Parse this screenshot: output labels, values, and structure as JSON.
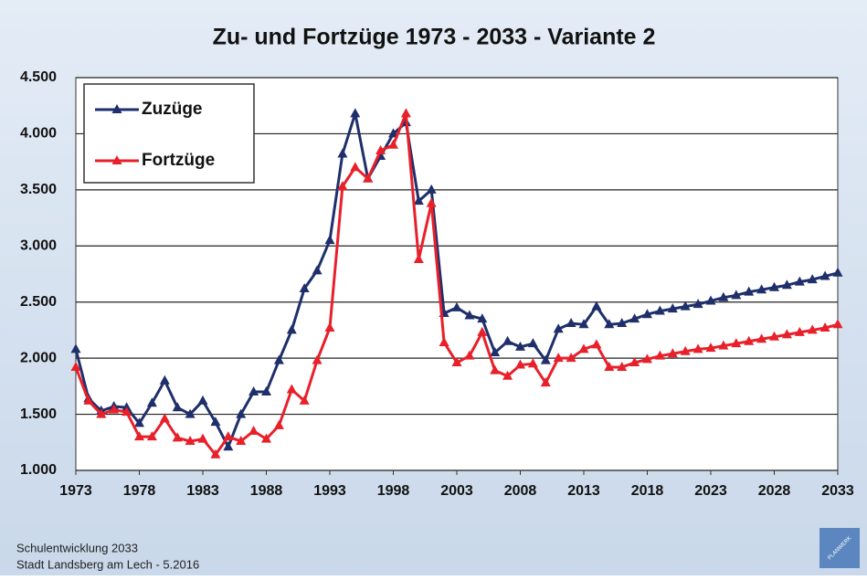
{
  "chart_data": {
    "type": "line",
    "title": "Zu- und Fortzüge 1973 - 2033 - Variante 2",
    "x": [
      1973,
      1974,
      1975,
      1976,
      1977,
      1978,
      1979,
      1980,
      1981,
      1982,
      1983,
      1984,
      1985,
      1986,
      1987,
      1988,
      1989,
      1990,
      1991,
      1992,
      1993,
      1994,
      1995,
      1996,
      1997,
      1998,
      1999,
      2000,
      2001,
      2002,
      2003,
      2004,
      2005,
      2006,
      2007,
      2008,
      2009,
      2010,
      2011,
      2012,
      2013,
      2014,
      2015,
      2016,
      2017,
      2018,
      2019,
      2020,
      2021,
      2022,
      2023,
      2024,
      2025,
      2026,
      2027,
      2028,
      2029,
      2030,
      2031,
      2032,
      2033
    ],
    "series": [
      {
        "name": "Zuzüge",
        "color": "#1f2f6b",
        "values": [
          2080,
          1640,
          1530,
          1570,
          1560,
          1420,
          1600,
          1800,
          1560,
          1500,
          1620,
          1430,
          1210,
          1500,
          1700,
          1700,
          1980,
          2250,
          2620,
          2780,
          3050,
          3820,
          4180,
          3600,
          3800,
          4000,
          4100,
          3400,
          3500,
          2400,
          2450,
          2380,
          2350,
          2050,
          2150,
          2100,
          2130,
          1980,
          2260,
          2310,
          2300,
          2460,
          2300,
          2310,
          2350,
          2390,
          2420,
          2440,
          2460,
          2480,
          2510,
          2540,
          2560,
          2590,
          2610,
          2630,
          2650,
          2680,
          2700,
          2730,
          2760
        ]
      },
      {
        "name": "Fortzüge",
        "color": "#e8202a",
        "values": [
          1920,
          1620,
          1500,
          1540,
          1520,
          1300,
          1300,
          1460,
          1290,
          1260,
          1280,
          1140,
          1300,
          1260,
          1350,
          1280,
          1400,
          1720,
          1620,
          1980,
          2270,
          3530,
          3700,
          3600,
          3850,
          3900,
          4180,
          2880,
          3380,
          2140,
          1960,
          2020,
          2230,
          1890,
          1840,
          1940,
          1950,
          1780,
          2000,
          2000,
          2080,
          2120,
          1920,
          1920,
          1960,
          1990,
          2020,
          2040,
          2060,
          2080,
          2090,
          2110,
          2130,
          2150,
          2170,
          2190,
          2210,
          2230,
          2250,
          2270,
          2300
        ]
      }
    ],
    "xlim": [
      1973,
      2033
    ],
    "xticks": [
      1973,
      1978,
      1983,
      1988,
      1993,
      1998,
      2003,
      2008,
      2013,
      2018,
      2023,
      2028,
      2033
    ],
    "ylim": [
      1000,
      4500
    ],
    "yticks": [
      {
        "value": 1000,
        "label": "1.000"
      },
      {
        "value": 1500,
        "label": "1.500"
      },
      {
        "value": 2000,
        "label": "2.000"
      },
      {
        "value": 2500,
        "label": "2.500"
      },
      {
        "value": 3000,
        "label": "3.000"
      },
      {
        "value": 3500,
        "label": "3.500"
      },
      {
        "value": 4000,
        "label": "4.000"
      },
      {
        "value": 4500,
        "label": "4.500"
      }
    ],
    "grid": true,
    "legend": "top-left"
  },
  "footer": {
    "lines": [
      "Schulentwicklung 2033",
      "Stadt Landsberg am Lech - 5.2016"
    ],
    "logo": "PLANWERK"
  }
}
